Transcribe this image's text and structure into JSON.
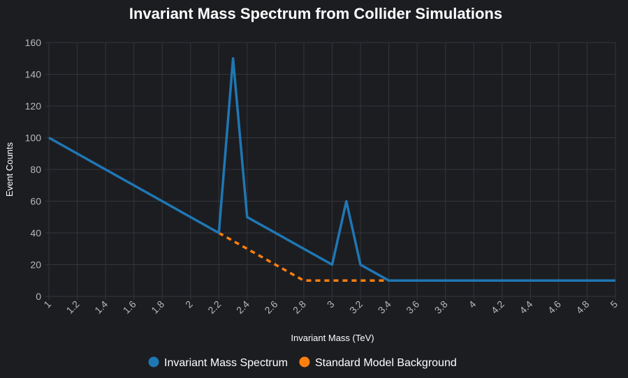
{
  "chart_data": {
    "type": "line",
    "title": "Invariant Mass Spectrum from Collider Simulations",
    "xlabel": "Invariant Mass (TeV)",
    "ylabel": "Event Counts",
    "xlim": [
      1,
      5
    ],
    "ylim": [
      0,
      160
    ],
    "x_ticks": [
      "1",
      "1.2",
      "1.4",
      "1.6",
      "1.8",
      "2",
      "2.2",
      "2.4",
      "2.6",
      "2.8",
      "3",
      "3.2",
      "3.4",
      "3.6",
      "3.8",
      "4",
      "4.2",
      "4.4",
      "4.6",
      "4.8",
      "5"
    ],
    "y_ticks": [
      "0",
      "20",
      "40",
      "60",
      "80",
      "100",
      "120",
      "140",
      "160"
    ],
    "grid": true,
    "legend_position": "bottom-center",
    "series": [
      {
        "name": "Invariant Mass Spectrum",
        "color": "#1f77b4",
        "style": "solid",
        "x": [
          1,
          2.2,
          2.3,
          2.4,
          3.0,
          3.1,
          3.2,
          3.4,
          5.0
        ],
        "y": [
          100,
          40,
          150,
          50,
          20,
          60,
          20,
          10,
          10
        ]
      },
      {
        "name": "Standard Model Background",
        "color": "#ff7f0e",
        "style": "dashed",
        "x": [
          2.2,
          2.8,
          3.4
        ],
        "y": [
          40,
          10,
          10
        ]
      }
    ]
  }
}
